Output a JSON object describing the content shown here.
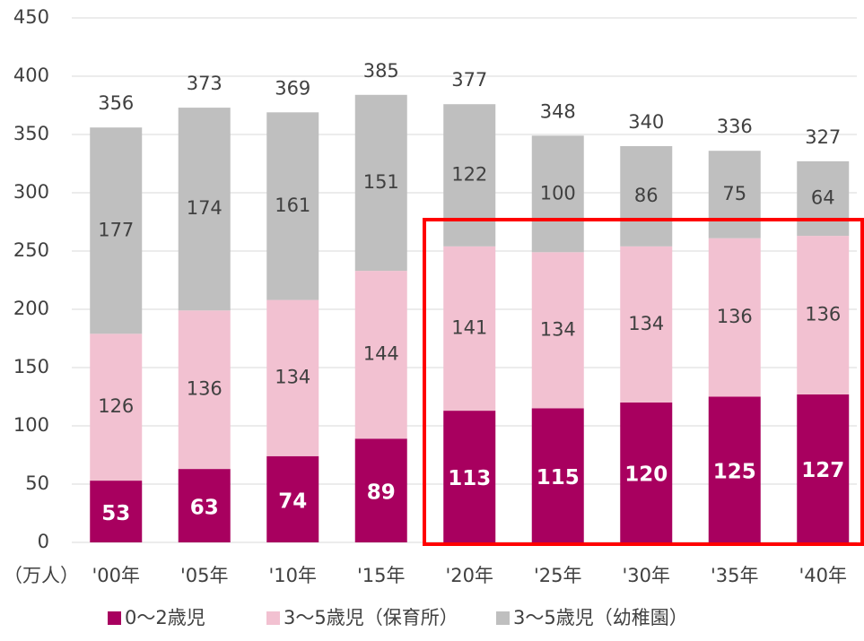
{
  "chart_data": {
    "type": "bar",
    "stacked": true,
    "unit_label": "（万人）",
    "categories": [
      "'00年",
      "'05年",
      "'10年",
      "'15年",
      "'20年",
      "'25年",
      "'30年",
      "'35年",
      "'40年"
    ],
    "series": [
      {
        "name": "0～2歳児",
        "color": "#a8005f",
        "values": [
          53,
          63,
          74,
          89,
          113,
          115,
          120,
          125,
          127
        ]
      },
      {
        "name": "3～5歳児（保育所）",
        "color": "#f2c1d1",
        "values": [
          126,
          136,
          134,
          144,
          141,
          134,
          134,
          136,
          136
        ]
      },
      {
        "name": "3～5歳児（幼稚園）",
        "color": "#bfbfbf",
        "values": [
          177,
          174,
          161,
          151,
          122,
          100,
          86,
          75,
          64
        ]
      }
    ],
    "totals": [
      356,
      373,
      369,
      385,
      377,
      348,
      340,
      336,
      327
    ],
    "ylim": [
      0,
      450
    ],
    "yticks": [
      0,
      50,
      100,
      150,
      200,
      250,
      300,
      350,
      400,
      450
    ],
    "grid": true
  }
}
